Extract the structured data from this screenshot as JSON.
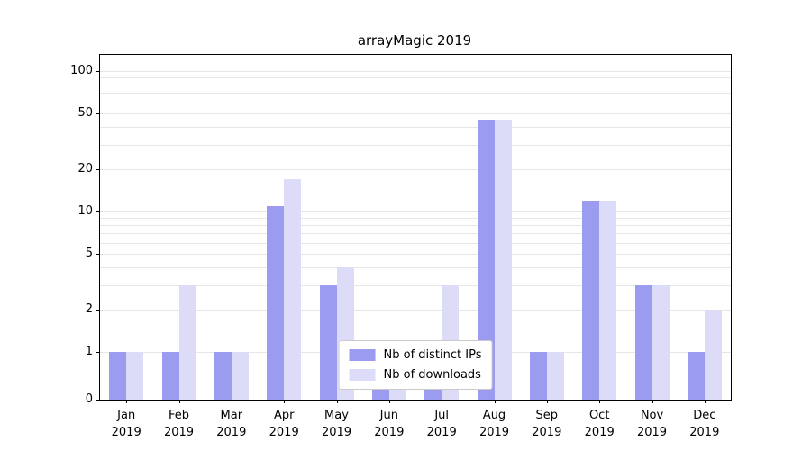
{
  "chart_data": {
    "type": "bar",
    "title": "arrayMagic 2019",
    "categories": [
      "Jan\n2019",
      "Feb\n2019",
      "Mar\n2019",
      "Apr\n2019",
      "May\n2019",
      "Jun\n2019",
      "Jul\n2019",
      "Aug\n2019",
      "Sep\n2019",
      "Oct\n2019",
      "Nov\n2019",
      "Dec\n2019"
    ],
    "series": [
      {
        "name": "Nb of distinct IPs",
        "color": "#9b9bef",
        "values": [
          1,
          1,
          1,
          11,
          3,
          1,
          1,
          45,
          1,
          12,
          3,
          1
        ]
      },
      {
        "name": "Nb of downloads",
        "color": "#dcdcf8",
        "values": [
          1,
          3,
          1,
          17,
          4,
          1,
          3,
          45,
          1,
          12,
          3,
          2
        ]
      }
    ],
    "yscale": "symlog",
    "y_ticks": [
      0,
      1,
      2,
      5,
      10,
      20,
      50,
      100
    ],
    "ylim": [
      0,
      130
    ],
    "grid": true,
    "legend_position": "lower center"
  }
}
